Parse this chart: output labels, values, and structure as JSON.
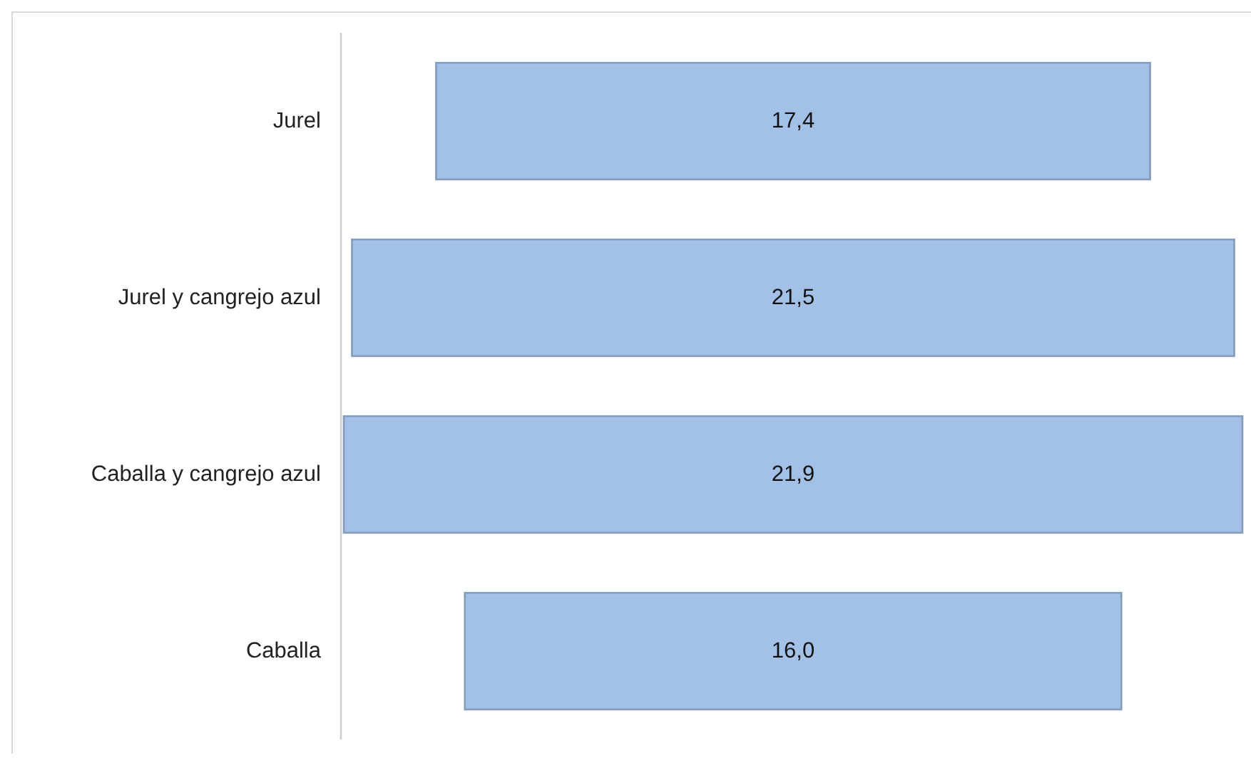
{
  "chart_data": {
    "type": "other",
    "categories": [
      "Jurel",
      "Jurel y cangrejo azul",
      "Caballa y cangrejo azul",
      "Caballa"
    ],
    "values": [
      17.4,
      21.5,
      21.9,
      16.0
    ],
    "value_labels": [
      "17,4",
      "21,5",
      "21,9",
      "16,0"
    ],
    "color": "#a3c0e6"
  }
}
